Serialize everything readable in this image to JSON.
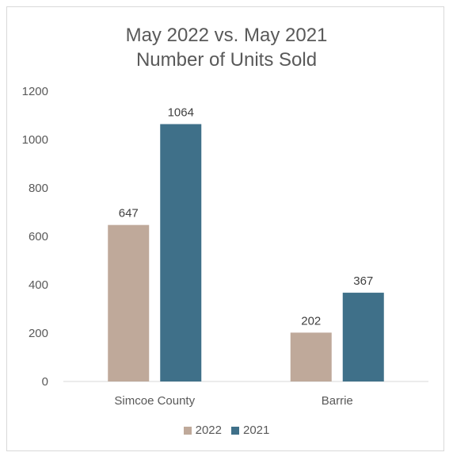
{
  "colors": {
    "series_2022": "#bfa99a",
    "series_2021": "#3f7089",
    "axis": "#d9d9d9",
    "text": "#595959"
  },
  "chart_data": {
    "type": "bar",
    "title": "May 2022 vs. May 2021",
    "subtitle": "Number of Units Sold",
    "categories": [
      "Simcoe County",
      "Barrie"
    ],
    "series": [
      {
        "name": "2022",
        "values": [
          647,
          202
        ]
      },
      {
        "name": "2021",
        "values": [
          1064,
          367
        ]
      }
    ],
    "ylim": [
      0,
      1200
    ],
    "yticks": [
      0,
      200,
      400,
      600,
      800,
      1000,
      1200
    ],
    "grid": false,
    "legend_position": "bottom"
  }
}
